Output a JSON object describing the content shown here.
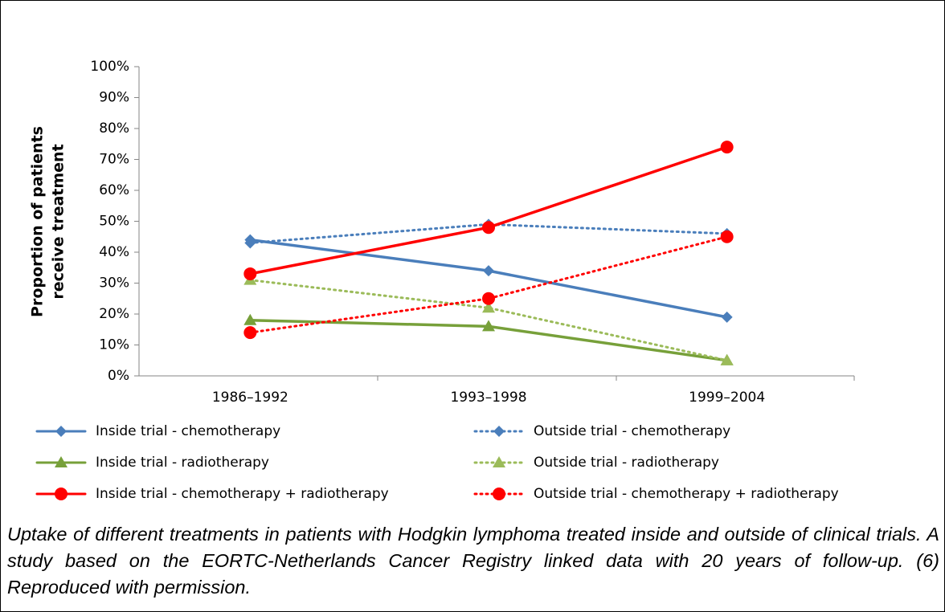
{
  "chart_data": {
    "type": "line",
    "y_label": [
      "Proportion of patients",
      "receive treatment"
    ],
    "categories": [
      "1986–1992",
      "1993–1998",
      "1999–2004"
    ],
    "series": [
      {
        "name": "Inside trial - chemotherapy",
        "color": "#4a7ebb",
        "dash": "solid",
        "marker": "diamond",
        "values": [
          44,
          34,
          19
        ]
      },
      {
        "name": "Outside trial - chemotherapy",
        "color": "#4a7ebb",
        "dash": "dotted",
        "marker": "diamond",
        "values": [
          43,
          49,
          46
        ]
      },
      {
        "name": "Inside trial - radiotherapy",
        "color": "#77a03a",
        "dash": "solid",
        "marker": "triangle",
        "values": [
          18,
          16,
          5
        ]
      },
      {
        "name": "Outside trial - radiotherapy",
        "color": "#9bbb59",
        "dash": "dotted",
        "marker": "triangle",
        "values": [
          31,
          22,
          5
        ]
      },
      {
        "name": "Inside trial - chemotherapy + radiotherapy",
        "color": "#ff0000",
        "dash": "solid",
        "marker": "circle",
        "values": [
          33,
          48,
          74
        ]
      },
      {
        "name": "Outside trial - chemotherapy + radiotherapy",
        "color": "#ff0000",
        "dash": "dotted",
        "marker": "circle",
        "values": [
          14,
          25,
          45
        ]
      }
    ],
    "ylim": [
      0,
      100
    ],
    "yticks": [
      {
        "value": 0,
        "label": "0%"
      },
      {
        "value": 10,
        "label": "10%"
      },
      {
        "value": 20,
        "label": "20%"
      },
      {
        "value": 30,
        "label": "30%"
      },
      {
        "value": 40,
        "label": "40%"
      },
      {
        "value": 50,
        "label": "50%"
      },
      {
        "value": 60,
        "label": "60%"
      },
      {
        "value": 70,
        "label": "70%"
      },
      {
        "value": 80,
        "label": "80%"
      },
      {
        "value": 90,
        "label": "90%"
      },
      {
        "value": 100,
        "label": "100%"
      }
    ],
    "grid": false,
    "caption": "Uptake of different treatments in patients with Hodgkin lymphoma treated inside and outside of clinical trials. A study based on the EORTC-Netherlands Cancer Registry linked data with 20 years of follow-up.  (6)  Reproduced with permission."
  }
}
